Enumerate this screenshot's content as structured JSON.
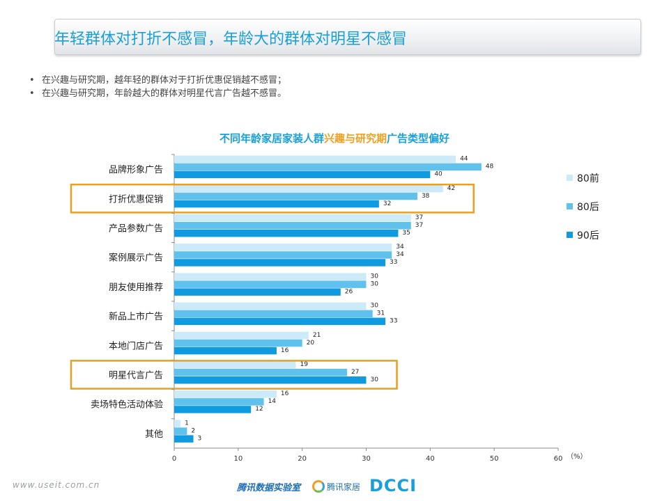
{
  "header": {
    "title": "年轻群体对打折不感冒，年龄大的群体对明星不感冒"
  },
  "bullets": [
    "在兴趣与研究期，越年轻的群体对于打折优惠促销越不感冒；",
    "在兴趣与研究期，年龄越大的群体对明星代言广告越不感冒。"
  ],
  "chart_title": {
    "part1": "不同年龄家居家装人群",
    "part2": "兴趣与研究期",
    "part3": "广告类型偏好"
  },
  "chart_data": {
    "type": "bar",
    "orientation": "horizontal",
    "categories": [
      "品牌形象广告",
      "打折优惠促销",
      "产品参数广告",
      "案例展示广告",
      "朋友使用推荐",
      "新品上市广告",
      "本地门店广告",
      "明星代言广告",
      "卖场特色活动体验",
      "其他"
    ],
    "series": [
      {
        "name": "80前",
        "color": "#cdeaf8",
        "values": [
          44,
          42,
          37,
          34,
          30,
          30,
          21,
          19,
          16,
          1
        ]
      },
      {
        "name": "80后",
        "color": "#5fc1ec",
        "values": [
          48,
          38,
          37,
          34,
          30,
          31,
          20,
          27,
          14,
          2
        ]
      },
      {
        "name": "90后",
        "color": "#109ae0",
        "values": [
          40,
          32,
          35,
          33,
          26,
          33,
          16,
          30,
          12,
          3
        ]
      }
    ],
    "xlim": [
      0,
      60
    ],
    "xticks": [
      0,
      10,
      20,
      30,
      40,
      50,
      60
    ],
    "unit": "（%）",
    "highlighted_categories": [
      "打折优惠促销",
      "明星代言广告"
    ],
    "highlight_color": "#e8a020",
    "legend_position": "right"
  },
  "footer": {
    "url": "www.useit.com.cn",
    "lab": "腾讯数据实验室",
    "logo2": "腾讯家居",
    "logo3": "DCCI"
  }
}
